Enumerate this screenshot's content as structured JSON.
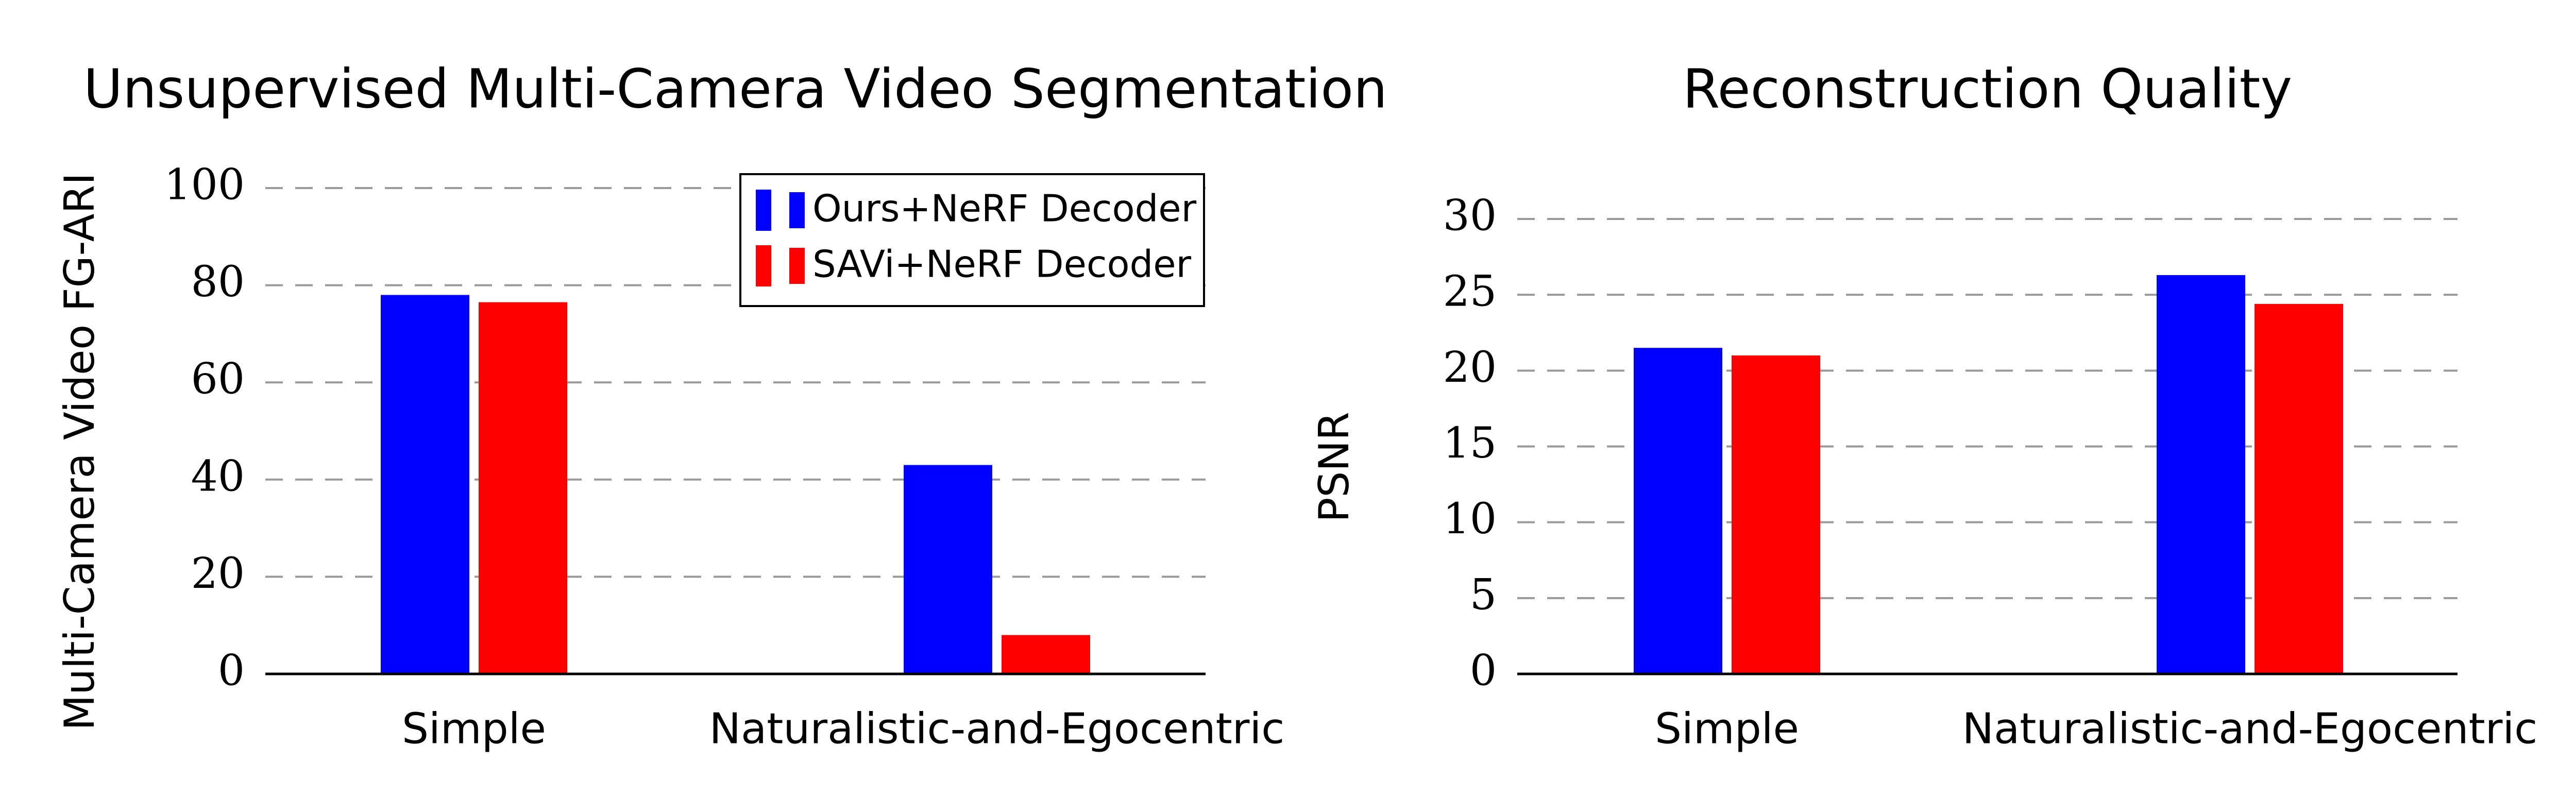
{
  "chart_data": [
    {
      "type": "bar",
      "title": "Unsupervised Multi-Camera Video Segmentation",
      "xlabel": "",
      "ylabel": "Multi-Camera Video FG-ARI",
      "categories": [
        "Simple",
        "Naturalistic-and-Egocentric"
      ],
      "series": [
        {
          "name": "Ours+NeRF Decoder",
          "color": "#0000ff",
          "values": [
            78,
            43
          ]
        },
        {
          "name": "SAVi+NeRF Decoder",
          "color": "#ff0000",
          "values": [
            76.5,
            8
          ]
        }
      ],
      "ylim": [
        0,
        110
      ],
      "yticks": [
        0,
        20,
        40,
        60,
        80,
        100
      ],
      "grid": "horizontal-dashed",
      "legend": "top-right"
    },
    {
      "type": "bar",
      "title": "Reconstruction Quality",
      "xlabel": "",
      "ylabel": "PSNR",
      "categories": [
        "Simple",
        "Naturalistic-and-Egocentric"
      ],
      "series": [
        {
          "color": "#0000ff",
          "values": [
            21.5,
            26.3
          ]
        },
        {
          "color": "#ff0000",
          "values": [
            21,
            24.4
          ]
        }
      ],
      "ylim": [
        0,
        30
      ],
      "yticks": [
        0,
        5,
        10,
        15,
        20,
        25,
        30
      ],
      "grid": "horizontal-dashed",
      "legend": "none"
    }
  ]
}
